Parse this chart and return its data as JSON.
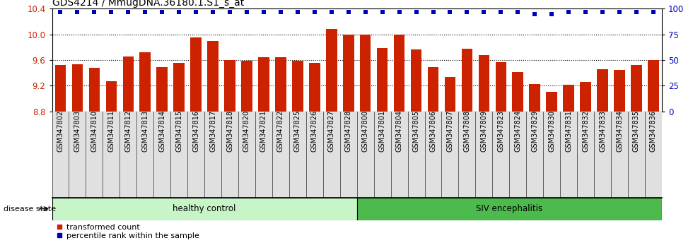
{
  "title": "GDS4214 / MmugDNA.36180.1.S1_s_at",
  "categories": [
    "GSM347802",
    "GSM347803",
    "GSM347810",
    "GSM347811",
    "GSM347812",
    "GSM347813",
    "GSM347814",
    "GSM347815",
    "GSM347816",
    "GSM347817",
    "GSM347818",
    "GSM347820",
    "GSM347821",
    "GSM347822",
    "GSM347825",
    "GSM347826",
    "GSM347827",
    "GSM347828",
    "GSM347800",
    "GSM347801",
    "GSM347804",
    "GSM347805",
    "GSM347806",
    "GSM347807",
    "GSM347808",
    "GSM347809",
    "GSM347823",
    "GSM347824",
    "GSM347829",
    "GSM347830",
    "GSM347831",
    "GSM347832",
    "GSM347833",
    "GSM347834",
    "GSM347835",
    "GSM347836"
  ],
  "bar_values": [
    9.52,
    9.53,
    9.48,
    9.27,
    9.65,
    9.72,
    9.49,
    9.55,
    9.95,
    9.9,
    9.6,
    9.59,
    9.64,
    9.64,
    9.59,
    9.56,
    10.08,
    10.0,
    10.0,
    9.79,
    10.0,
    9.76,
    9.49,
    9.34,
    9.78,
    9.68,
    9.57,
    9.41,
    9.23,
    9.1,
    9.21,
    9.26,
    9.46,
    9.45,
    9.52,
    9.6
  ],
  "dot_y_positions": [
    97,
    97,
    97,
    97,
    97,
    97,
    97,
    97,
    97,
    97,
    97,
    97,
    97,
    97,
    97,
    97,
    97,
    97,
    97,
    97,
    97,
    97,
    97,
    97,
    97,
    97,
    97,
    97,
    95,
    95,
    97,
    97,
    97,
    97,
    97,
    97
  ],
  "healthy_control_count": 18,
  "group1_label": "healthy control",
  "group2_label": "SIV encephalitis",
  "group1_color": "#c8f5c8",
  "group2_color": "#4cba4c",
  "bar_color": "#cc2200",
  "dot_color": "#0000bb",
  "ylim_left": [
    8.8,
    10.4
  ],
  "ylim_right": [
    0,
    100
  ],
  "yticks_left": [
    8.8,
    9.2,
    9.6,
    10.0,
    10.4
  ],
  "yticks_right": [
    0,
    25,
    50,
    75,
    100
  ],
  "title_fontsize": 10,
  "tick_label_fontsize": 7,
  "disease_state_label": "disease state"
}
